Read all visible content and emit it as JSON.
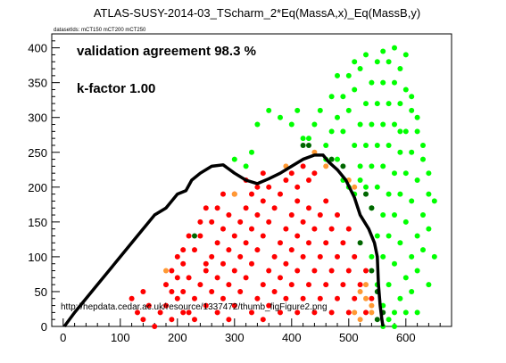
{
  "chart_data": {
    "type": "scatter",
    "title": "ATLAS-SUSY-2014-03_TScharm_2*Eq(MassA,x)_Eq(MassB,y)",
    "subtitle": "datasetIds: mCT150 mCT200 mCT250",
    "annotations": {
      "agreement": "validation agreement 98.3 %",
      "kfactor": "k-factor 1.00",
      "url": "http://hepdata.cedar.ac.uk/resource/1337472/thumb_figFigure2.png"
    },
    "xlim": [
      -20,
      680
    ],
    "ylim": [
      0,
      420
    ],
    "x_ticks": [
      "0",
      "100",
      "200",
      "300",
      "400",
      "500",
      "600"
    ],
    "y_ticks": [
      "0",
      "50",
      "100",
      "150",
      "200",
      "250",
      "300",
      "350",
      "400"
    ],
    "colors": {
      "excluded": "#ff0000",
      "allowed": "#00ff00",
      "excluded_border": "#ff9933",
      "allowed_border": "#006600",
      "exclusion_line": "#000000"
    },
    "series": [
      {
        "key": "excluded",
        "points": [
          [
            120,
            40
          ],
          [
            140,
            50
          ],
          [
            130,
            20
          ],
          [
            150,
            30
          ],
          [
            170,
            20
          ],
          [
            160,
            0
          ],
          [
            140,
            10
          ],
          [
            190,
            10
          ],
          [
            180,
            30
          ],
          [
            190,
            50
          ],
          [
            200,
            70
          ],
          [
            210,
            90
          ],
          [
            220,
            20
          ],
          [
            230,
            40
          ],
          [
            240,
            60
          ],
          [
            250,
            80
          ],
          [
            260,
            100
          ],
          [
            270,
            120
          ],
          [
            280,
            140
          ],
          [
            290,
            160
          ],
          [
            200,
            40
          ],
          [
            210,
            20
          ],
          [
            230,
            10
          ],
          [
            250,
            30
          ],
          [
            260,
            50
          ],
          [
            270,
            70
          ],
          [
            280,
            90
          ],
          [
            290,
            110
          ],
          [
            300,
            130
          ],
          [
            310,
            150
          ],
          [
            320,
            170
          ],
          [
            330,
            190
          ],
          [
            210,
            50
          ],
          [
            220,
            70
          ],
          [
            230,
            110
          ],
          [
            240,
            130
          ],
          [
            250,
            90
          ],
          [
            260,
            150
          ],
          [
            270,
            170
          ],
          [
            280,
            190
          ],
          [
            290,
            60
          ],
          [
            300,
            80
          ],
          [
            310,
            100
          ],
          [
            320,
            120
          ],
          [
            330,
            140
          ],
          [
            340,
            160
          ],
          [
            350,
            180
          ],
          [
            360,
            200
          ],
          [
            270,
            20
          ],
          [
            280,
            40
          ],
          [
            290,
            10
          ],
          [
            300,
            30
          ],
          [
            310,
            50
          ],
          [
            320,
            70
          ],
          [
            330,
            90
          ],
          [
            340,
            110
          ],
          [
            350,
            130
          ],
          [
            360,
            150
          ],
          [
            370,
            170
          ],
          [
            380,
            190
          ],
          [
            390,
            210
          ],
          [
            330,
            20
          ],
          [
            340,
            40
          ],
          [
            350,
            60
          ],
          [
            360,
            80
          ],
          [
            370,
            100
          ],
          [
            380,
            120
          ],
          [
            390,
            140
          ],
          [
            400,
            160
          ],
          [
            410,
            180
          ],
          [
            350,
            10
          ],
          [
            360,
            30
          ],
          [
            370,
            50
          ],
          [
            380,
            70
          ],
          [
            390,
            90
          ],
          [
            400,
            110
          ],
          [
            410,
            130
          ],
          [
            420,
            150
          ],
          [
            430,
            170
          ],
          [
            380,
            20
          ],
          [
            390,
            40
          ],
          [
            400,
            60
          ],
          [
            410,
            80
          ],
          [
            420,
            100
          ],
          [
            430,
            120
          ],
          [
            440,
            140
          ],
          [
            450,
            160
          ],
          [
            460,
            180
          ],
          [
            410,
            20
          ],
          [
            420,
            40
          ],
          [
            430,
            60
          ],
          [
            440,
            80
          ],
          [
            450,
            100
          ],
          [
            460,
            120
          ],
          [
            470,
            140
          ],
          [
            480,
            160
          ],
          [
            440,
            20
          ],
          [
            450,
            40
          ],
          [
            460,
            60
          ],
          [
            470,
            80
          ],
          [
            480,
            100
          ],
          [
            490,
            120
          ],
          [
            500,
            140
          ],
          [
            470,
            20
          ],
          [
            480,
            40
          ],
          [
            490,
            60
          ],
          [
            500,
            80
          ],
          [
            510,
            100
          ],
          [
            500,
            20
          ],
          [
            510,
            40
          ],
          [
            520,
            60
          ],
          [
            530,
            80
          ],
          [
            530,
            20
          ],
          [
            540,
            40
          ],
          [
            400,
            220
          ],
          [
            410,
            200
          ],
          [
            420,
            230
          ],
          [
            430,
            210
          ],
          [
            440,
            220
          ],
          [
            350,
            220
          ],
          [
            340,
            200
          ],
          [
            320,
            210
          ],
          [
            300,
            190
          ],
          [
            250,
            170
          ],
          [
            240,
            150
          ],
          [
            220,
            130
          ],
          [
            210,
            110
          ],
          [
            200,
            100
          ],
          [
            190,
            80
          ],
          [
            180,
            60
          ]
        ]
      },
      {
        "key": "allowed",
        "points": [
          [
            560,
            30
          ],
          [
            570,
            60
          ],
          [
            580,
            90
          ],
          [
            590,
            120
          ],
          [
            600,
            150
          ],
          [
            610,
            180
          ],
          [
            620,
            210
          ],
          [
            630,
            240
          ],
          [
            640,
            220
          ],
          [
            650,
            180
          ],
          [
            640,
            140
          ],
          [
            630,
            110
          ],
          [
            620,
            80
          ],
          [
            610,
            50
          ],
          [
            600,
            20
          ],
          [
            580,
            20
          ],
          [
            590,
            40
          ],
          [
            600,
            70
          ],
          [
            610,
            100
          ],
          [
            620,
            130
          ],
          [
            630,
            160
          ],
          [
            640,
            190
          ],
          [
            560,
            100
          ],
          [
            570,
            130
          ],
          [
            580,
            160
          ],
          [
            590,
            190
          ],
          [
            600,
            220
          ],
          [
            610,
            250
          ],
          [
            620,
            280
          ],
          [
            630,
            260
          ],
          [
            550,
            130
          ],
          [
            560,
            160
          ],
          [
            570,
            190
          ],
          [
            580,
            220
          ],
          [
            590,
            250
          ],
          [
            600,
            280
          ],
          [
            610,
            310
          ],
          [
            620,
            300
          ],
          [
            540,
            170
          ],
          [
            550,
            200
          ],
          [
            560,
            230
          ],
          [
            570,
            260
          ],
          [
            580,
            290
          ],
          [
            590,
            320
          ],
          [
            600,
            340
          ],
          [
            530,
            200
          ],
          [
            540,
            230
          ],
          [
            550,
            260
          ],
          [
            560,
            290
          ],
          [
            570,
            320
          ],
          [
            580,
            350
          ],
          [
            590,
            370
          ],
          [
            520,
            230
          ],
          [
            530,
            260
          ],
          [
            540,
            290
          ],
          [
            550,
            320
          ],
          [
            560,
            350
          ],
          [
            570,
            380
          ],
          [
            510,
            260
          ],
          [
            520,
            290
          ],
          [
            530,
            320
          ],
          [
            540,
            350
          ],
          [
            550,
            380
          ],
          [
            560,
            395
          ],
          [
            490,
            280
          ],
          [
            500,
            310
          ],
          [
            510,
            340
          ],
          [
            520,
            370
          ],
          [
            530,
            390
          ],
          [
            470,
            280
          ],
          [
            480,
            300
          ],
          [
            490,
            330
          ],
          [
            500,
            360
          ],
          [
            510,
            380
          ],
          [
            430,
            270
          ],
          [
            440,
            290
          ],
          [
            460,
            260
          ],
          [
            450,
            310
          ],
          [
            470,
            330
          ],
          [
            480,
            360
          ],
          [
            420,
            270
          ],
          [
            400,
            290
          ],
          [
            410,
            310
          ],
          [
            380,
            300
          ],
          [
            360,
            310
          ],
          [
            340,
            290
          ],
          [
            330,
            250
          ],
          [
            320,
            230
          ],
          [
            300,
            240
          ],
          [
            580,
            0
          ],
          [
            620,
            20
          ],
          [
            640,
            60
          ],
          [
            650,
            100
          ],
          [
            540,
            100
          ],
          [
            550,
            60
          ],
          [
            560,
            0
          ],
          [
            570,
            10
          ],
          [
            590,
            280
          ],
          [
            610,
            330
          ],
          [
            600,
            390
          ],
          [
            580,
            400
          ],
          [
            520,
            210
          ],
          [
            500,
            200
          ],
          [
            490,
            210
          ],
          [
            510,
            190
          ],
          [
            480,
            240
          ],
          [
            460,
            240
          ]
        ]
      },
      {
        "key": "excluded_border",
        "points": [
          [
            180,
            80
          ],
          [
            300,
            190
          ],
          [
            440,
            250
          ],
          [
            460,
            230
          ],
          [
            390,
            230
          ],
          [
            500,
            210
          ],
          [
            510,
            200
          ],
          [
            520,
            50
          ],
          [
            530,
            40
          ],
          [
            540,
            30
          ],
          [
            510,
            20
          ],
          [
            520,
            10
          ],
          [
            540,
            20
          ],
          [
            530,
            60
          ]
        ]
      },
      {
        "key": "allowed_border",
        "points": [
          [
            230,
            130
          ],
          [
            420,
            260
          ],
          [
            430,
            260
          ],
          [
            470,
            240
          ],
          [
            490,
            230
          ],
          [
            520,
            120
          ],
          [
            540,
            170
          ],
          [
            530,
            190
          ],
          [
            550,
            10
          ],
          [
            560,
            20
          ],
          [
            550,
            50
          ],
          [
            540,
            80
          ]
        ]
      }
    ],
    "exclusion_line": [
      [
        2,
        0
      ],
      [
        20,
        20
      ],
      [
        60,
        60
      ],
      [
        100,
        100
      ],
      [
        120,
        120
      ],
      [
        140,
        140
      ],
      [
        160,
        160
      ],
      [
        180,
        170
      ],
      [
        190,
        180
      ],
      [
        200,
        190
      ],
      [
        215,
        195
      ],
      [
        225,
        210
      ],
      [
        240,
        220
      ],
      [
        260,
        230
      ],
      [
        280,
        232
      ],
      [
        300,
        220
      ],
      [
        320,
        210
      ],
      [
        340,
        205
      ],
      [
        360,
        212
      ],
      [
        380,
        220
      ],
      [
        400,
        230
      ],
      [
        420,
        240
      ],
      [
        440,
        246
      ],
      [
        455,
        246
      ],
      [
        465,
        236
      ],
      [
        480,
        225
      ],
      [
        495,
        210
      ],
      [
        510,
        185
      ],
      [
        520,
        160
      ],
      [
        535,
        140
      ],
      [
        545,
        120
      ],
      [
        550,
        100
      ],
      [
        552,
        60
      ],
      [
        555,
        30
      ],
      [
        558,
        10
      ],
      [
        560,
        0
      ]
    ]
  }
}
